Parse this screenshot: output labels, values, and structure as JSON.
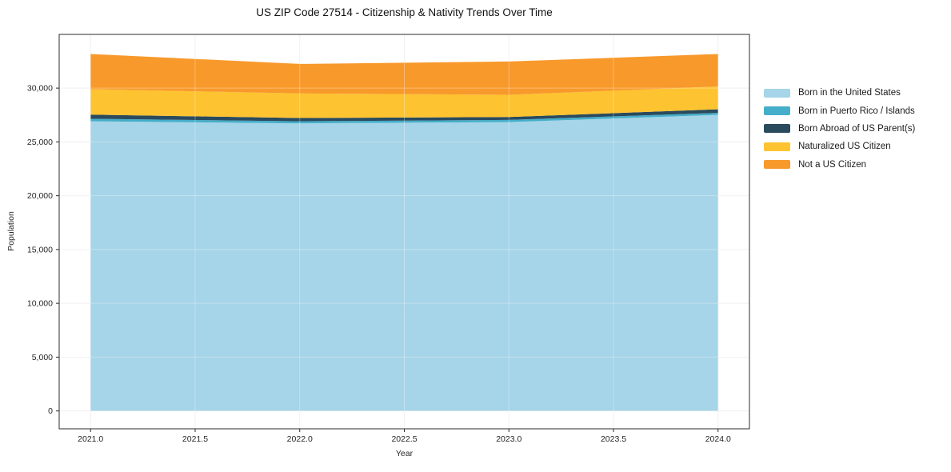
{
  "chart_data": {
    "type": "area",
    "stacked": true,
    "title": "US ZIP Code 27514 - Citizenship & Nativity Trends Over Time",
    "xlabel": "Year",
    "ylabel": "Population",
    "x": [
      2021,
      2022,
      2023,
      2024
    ],
    "series": [
      {
        "name": "Born in the United States",
        "color": "#a6d4e8",
        "values": [
          26920,
          26720,
          26840,
          27510
        ]
      },
      {
        "name": "Born in Puerto Rico / Islands",
        "color": "#45aec9",
        "values": [
          230,
          200,
          200,
          190
        ]
      },
      {
        "name": "Born Abroad of US Parent(s)",
        "color": "#2a4a5e",
        "values": [
          380,
          300,
          270,
          330
        ]
      },
      {
        "name": "Naturalized US Citizen",
        "color": "#fdc330",
        "values": [
          2370,
          2280,
          2070,
          2120
        ]
      },
      {
        "name": "Not a US Citizen",
        "color": "#f8992b",
        "values": [
          3270,
          2750,
          3090,
          3020
        ]
      }
    ],
    "xticks": {
      "values": [
        2021,
        2021.5,
        2022,
        2022.5,
        2023,
        2023.5,
        2024
      ],
      "labels": [
        "2021.0",
        "2021.5",
        "2022.0",
        "2022.5",
        "2023.0",
        "2023.5",
        "2024.0"
      ]
    },
    "yticks": {
      "values": [
        0,
        5000,
        10000,
        15000,
        20000,
        25000,
        30000
      ],
      "labels": [
        "0",
        "5,000",
        "10,000",
        "15,000",
        "20,000",
        "25,000",
        "30,000"
      ]
    },
    "xlim": [
      2020.85,
      2024.15
    ],
    "ylim": [
      -1660,
      34990
    ],
    "grid": true,
    "legend_position": "right",
    "colors": {
      "grid_under": "#e9e9e9",
      "grid_over": "rgba(255,255,255,0.32)",
      "spine": "#2b2b2b",
      "tick_label": "#262626"
    }
  }
}
